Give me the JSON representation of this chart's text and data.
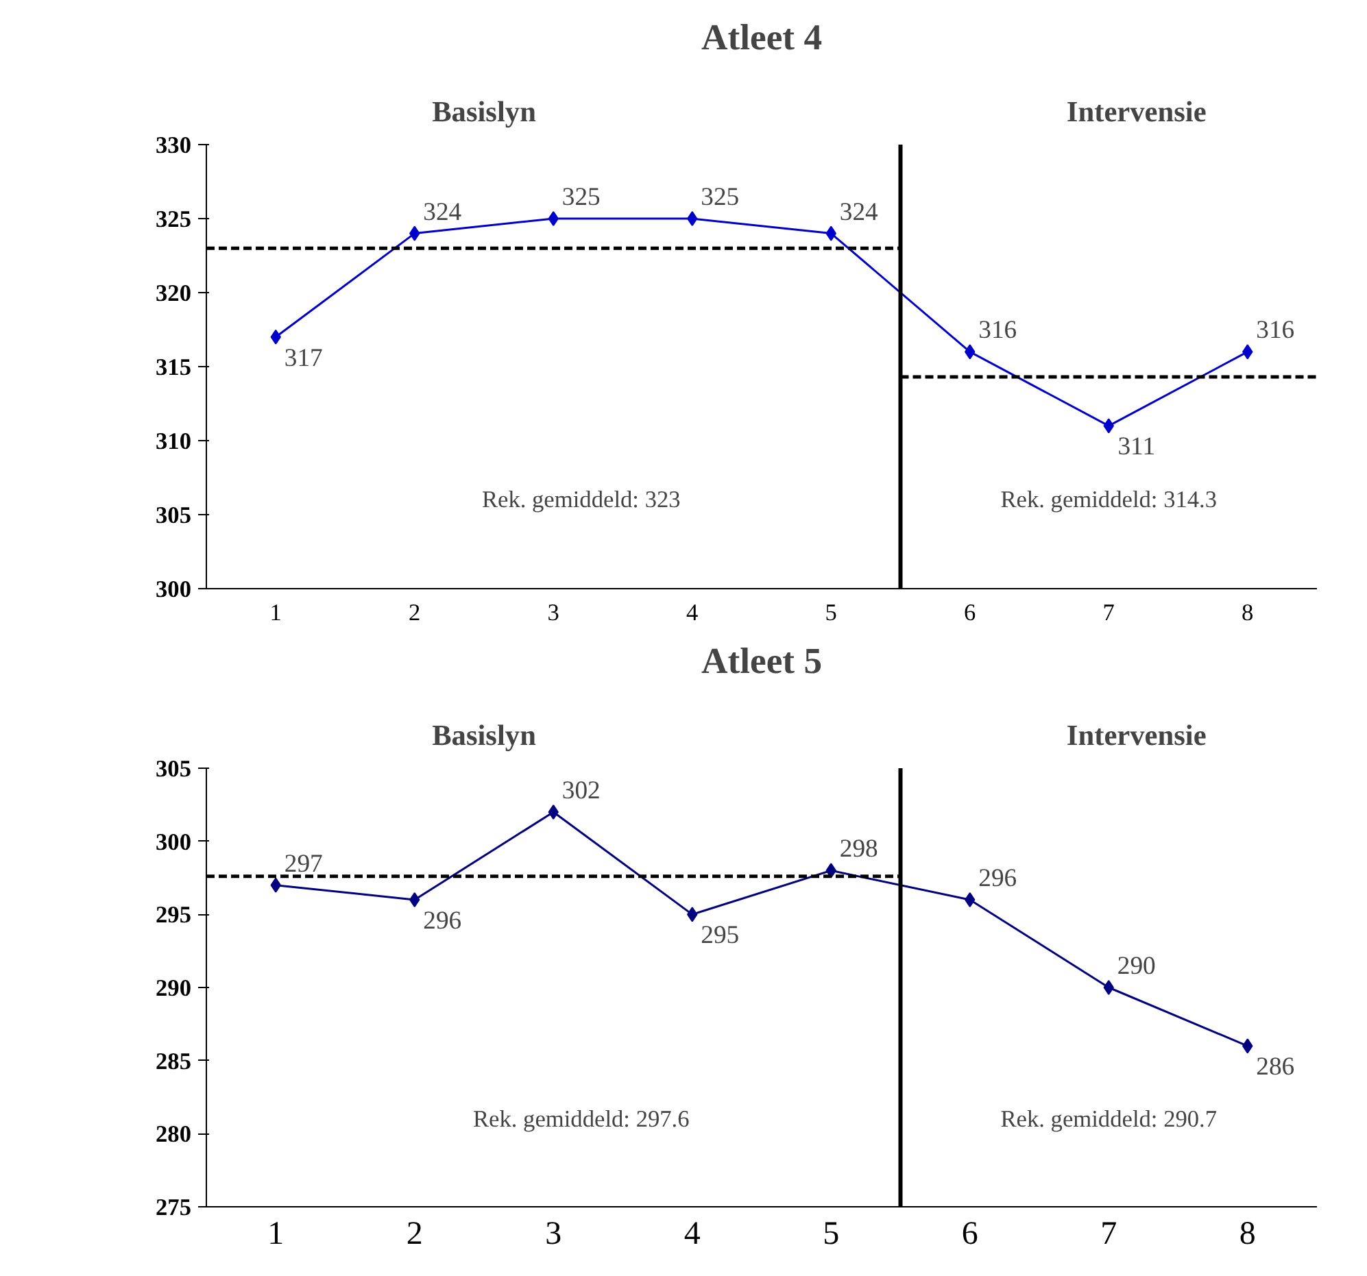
{
  "chart_data": [
    {
      "type": "line",
      "title": "Atleet 4",
      "categories": [
        "1",
        "2",
        "3",
        "4",
        "5",
        "6",
        "7",
        "8"
      ],
      "series": [
        {
          "color": "#0000cc",
          "values": [
            317,
            324,
            325,
            325,
            324,
            316,
            311,
            316
          ]
        }
      ],
      "ylim": [
        300,
        330
      ],
      "yticks": [
        300,
        305,
        310,
        315,
        320,
        325,
        330
      ],
      "marker": "diamond",
      "data_labels": true,
      "grid": false,
      "ref_lines": [
        {
          "axis": "y",
          "value": 323,
          "color": "#000000",
          "line_style": "dashed"
        },
        {
          "axis": "y",
          "value": 314.3,
          "color": "#000000",
          "line_style": "dashed"
        }
      ],
      "annotations": [
        "Basislyn",
        "Intervensie",
        "Rek. gemiddeld: 323",
        "Rek. gemiddeld: 314.3"
      ]
    },
    {
      "type": "line",
      "title": "Atleet 5",
      "categories": [
        "1",
        "2",
        "3",
        "4",
        "5",
        "6",
        "7",
        "8"
      ],
      "series": [
        {
          "color": "#000080",
          "values": [
            297,
            296,
            302,
            295,
            298,
            296,
            290,
            286
          ]
        }
      ],
      "ylim": [
        275,
        305
      ],
      "yticks": [
        275,
        280,
        285,
        290,
        295,
        300,
        305
      ],
      "marker": "diamond",
      "data_labels": true,
      "grid": false,
      "ref_lines": [
        {
          "axis": "y",
          "value": 297.6,
          "color": "#000000",
          "line_style": "dashed"
        }
      ],
      "annotations": [
        "Basislyn",
        "Intervensie",
        "Rek. gemiddeld: 297.6",
        "Rek. gemiddeld: 290.7"
      ]
    }
  ]
}
